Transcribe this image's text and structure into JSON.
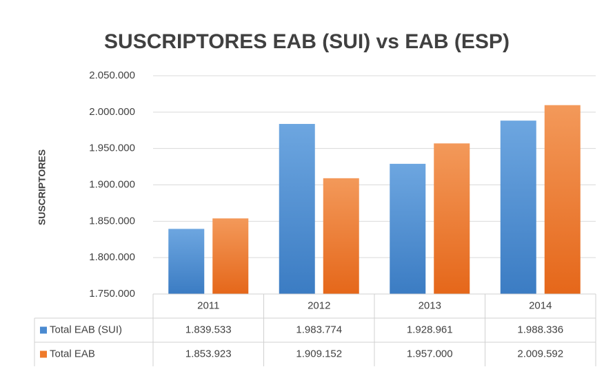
{
  "chart_data": {
    "type": "bar",
    "title": "SUSCRIPTORES   EAB (SUI) vs EAB (ESP)",
    "y_label": "SUSCRIPTORES",
    "categories": [
      "2011",
      "2012",
      "2013",
      "2014"
    ],
    "series": [
      {
        "name": "Total EAB (SUI)",
        "color": "#4a8ad0",
        "values": [
          1839533,
          1983774,
          1928961,
          1988336
        ],
        "value_labels": [
          "1.839.533",
          "1.983.774",
          "1.928.961",
          "1.988.336"
        ]
      },
      {
        "name": "Total EAB",
        "color": "#ef7a2a",
        "values": [
          1853923,
          1909152,
          1957000,
          2009592
        ],
        "value_labels": [
          "1.853.923",
          "1.909.152",
          "1.957.000",
          "2.009.592"
        ]
      }
    ],
    "ylim": [
      1750000,
      2050000
    ],
    "yticks": [
      {
        "value": 1750000,
        "label": "1.750.000"
      },
      {
        "value": 1800000,
        "label": "1.800.000"
      },
      {
        "value": 1850000,
        "label": "1.850.000"
      },
      {
        "value": 1900000,
        "label": "1.900.000"
      },
      {
        "value": 1950000,
        "label": "1.950.000"
      },
      {
        "value": 2000000,
        "label": "2.000.000"
      },
      {
        "value": 2050000,
        "label": "2.050.000"
      }
    ],
    "grid": true,
    "data_table": true
  }
}
